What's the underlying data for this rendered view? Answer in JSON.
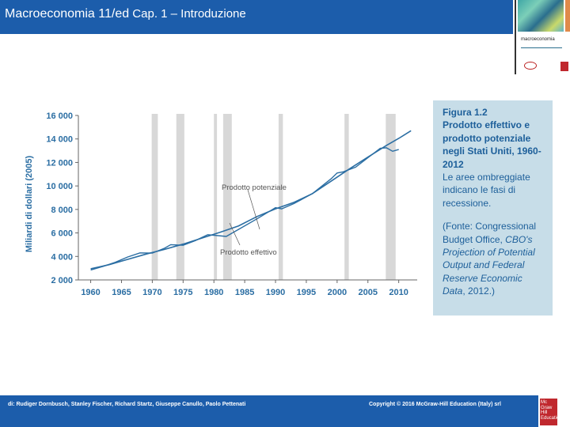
{
  "header": {
    "title_main": "Macroeconomia 11/ed",
    "title_sub": "Cap. 1 – Introduzione"
  },
  "cover": {
    "name": "macroeconomia"
  },
  "chart_data": {
    "type": "line",
    "ylabel": "Miliardi di dollari (2005)",
    "xlabel": "",
    "xlim": [
      1958,
      2013
    ],
    "ylim": [
      2000,
      16000
    ],
    "x_ticks": [
      "1960",
      "1965",
      "1970",
      "1975",
      "1980",
      "1985",
      "1990",
      "1995",
      "2000",
      "2005",
      "2010"
    ],
    "y_ticks": [
      "2 000",
      "4 000",
      "6 000",
      "8 000",
      "10 000",
      "12 000",
      "14 000",
      "16 000"
    ],
    "recessions": [
      [
        1969.9,
        1970.9
      ],
      [
        1973.9,
        1975.2
      ],
      [
        1980.0,
        1980.5
      ],
      [
        1981.5,
        1982.9
      ],
      [
        1990.5,
        1991.2
      ],
      [
        2001.2,
        2001.9
      ],
      [
        2007.9,
        2009.5
      ]
    ],
    "series": [
      {
        "name": "Prodotto potenziale",
        "color": "#2b6ea3",
        "x": [
          1960,
          1963,
          1966,
          1969,
          1972,
          1975,
          1978,
          1981,
          1984,
          1987,
          1990,
          1993,
          1996,
          1999,
          2002,
          2005,
          2008,
          2010,
          2012
        ],
        "y": [
          2950,
          3300,
          3750,
          4200,
          4600,
          5050,
          5550,
          6050,
          6600,
          7400,
          8050,
          8600,
          9350,
          10400,
          11450,
          12450,
          13450,
          14050,
          14700
        ]
      },
      {
        "name": "Prodotto effettivo",
        "color": "#2b6ea3",
        "x": [
          1960,
          1962,
          1964,
          1966,
          1968,
          1970,
          1972,
          1973,
          1975,
          1977,
          1979,
          1980,
          1982,
          1984,
          1987,
          1990,
          1991,
          1993,
          1996,
          1999,
          2000,
          2001,
          2003,
          2005,
          2007,
          2008,
          2009,
          2010
        ],
        "y": [
          2850,
          3150,
          3500,
          3950,
          4300,
          4280,
          4700,
          5000,
          4950,
          5350,
          5850,
          5800,
          5700,
          6300,
          7200,
          8150,
          8050,
          8500,
          9350,
          10600,
          11100,
          11200,
          11600,
          12400,
          13200,
          13250,
          12950,
          13100
        ]
      }
    ],
    "annotations": [
      "Prodotto potenziale",
      "Prodotto effettivo"
    ]
  },
  "caption": {
    "heading": "Figura 1.2",
    "title": "Prodotto effettivo e prodotto potenziale negli Stati Uniti, 1960-2012",
    "body": "Le aree ombreggiate indicano le fasi di recessione.",
    "source_open": "(Fonte: Congressional Budget Office, ",
    "source_italic": "CBO's Projection of Potential Output and Federal Reserve Economic Data",
    "source_close": ", 2012.)"
  },
  "footer": {
    "authors": "di: Rudiger Dornbusch, Stanley Fischer, Richard Startz, Giuseppe Canullo, Paolo Pettenati",
    "copyright": "Copyright © 2016 McGraw-Hill Education (Italy) srl"
  },
  "logo": {
    "line1": "Mc",
    "line2": "Graw",
    "line3": "Hill",
    "line4": "Education"
  }
}
